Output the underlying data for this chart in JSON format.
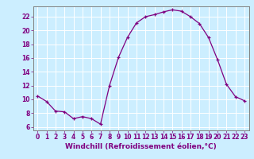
{
  "x": [
    0,
    1,
    2,
    3,
    4,
    5,
    6,
    7,
    8,
    9,
    10,
    11,
    12,
    13,
    14,
    15,
    16,
    17,
    18,
    19,
    20,
    21,
    22,
    23
  ],
  "y": [
    10.5,
    9.7,
    8.3,
    8.2,
    7.2,
    7.5,
    7.2,
    6.4,
    12.0,
    16.1,
    19.0,
    21.1,
    22.0,
    22.3,
    22.7,
    23.0,
    22.8,
    22.0,
    21.0,
    19.0,
    15.8,
    12.2,
    10.4,
    9.8
  ],
  "line_color": "#800080",
  "marker": "+",
  "xlabel": "Windchill (Refroidissement éolien,°C)",
  "xlabel_color": "#800080",
  "bg_color": "#cceeff",
  "grid_color": "#ffffff",
  "tick_color": "#800080",
  "spine_color": "#808080",
  "ylim": [
    5.5,
    23.5
  ],
  "xlim": [
    -0.5,
    23.5
  ],
  "yticks": [
    6,
    8,
    10,
    12,
    14,
    16,
    18,
    20,
    22
  ],
  "xticks": [
    0,
    1,
    2,
    3,
    4,
    5,
    6,
    7,
    8,
    9,
    10,
    11,
    12,
    13,
    14,
    15,
    16,
    17,
    18,
    19,
    20,
    21,
    22,
    23
  ],
  "xlabel_fontsize": 6.5,
  "tick_fontsize": 5.5
}
